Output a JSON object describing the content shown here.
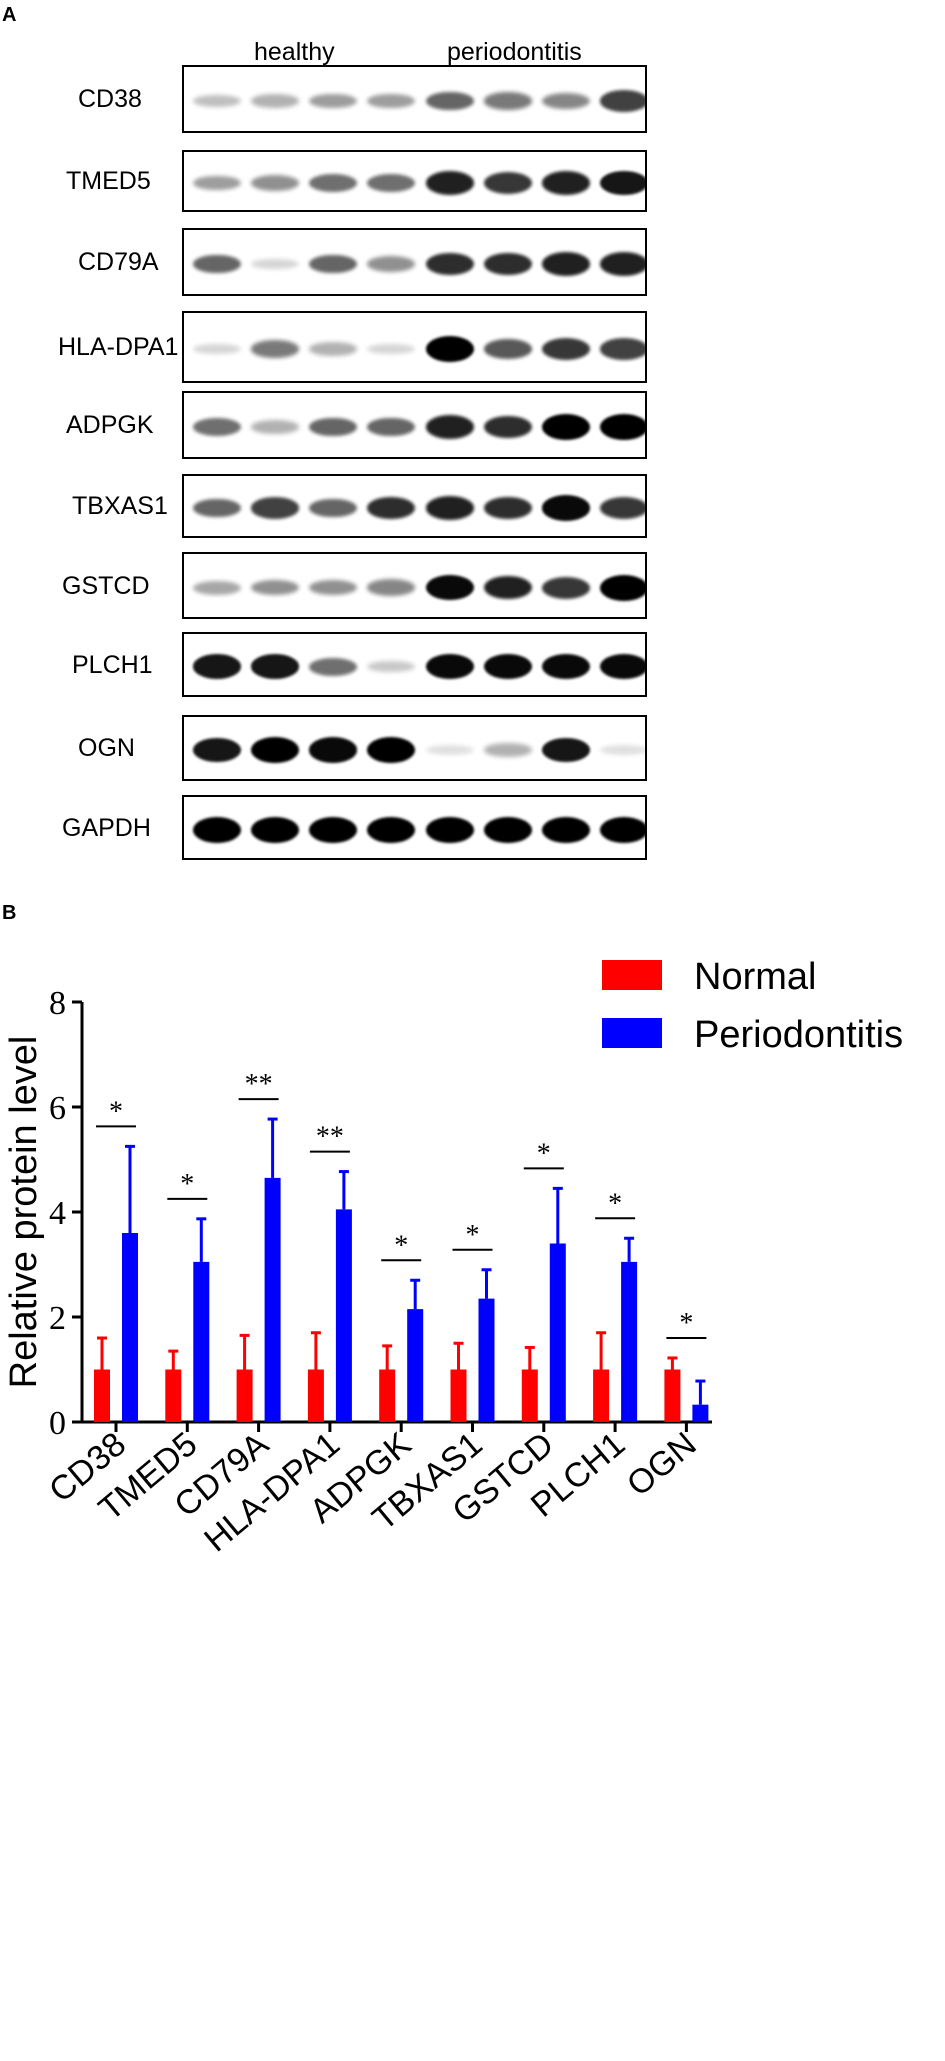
{
  "panel_a": {
    "letter": "A",
    "groups": [
      "healthy",
      "periodontitis"
    ],
    "blots": [
      {
        "label": "CD38",
        "bands": [
          0.15,
          0.2,
          0.3,
          0.3,
          0.55,
          0.45,
          0.4,
          0.7
        ]
      },
      {
        "label": "TMED5",
        "bands": [
          0.3,
          0.35,
          0.5,
          0.5,
          0.85,
          0.75,
          0.85,
          0.9
        ]
      },
      {
        "label": "CD79A",
        "bands": [
          0.55,
          0.05,
          0.55,
          0.35,
          0.8,
          0.8,
          0.85,
          0.85
        ]
      },
      {
        "label": "HLA-DPA1",
        "bands": [
          0.05,
          0.45,
          0.2,
          0.05,
          1.0,
          0.6,
          0.75,
          0.7
        ]
      },
      {
        "label": "ADPGK",
        "bands": [
          0.5,
          0.2,
          0.55,
          0.55,
          0.85,
          0.8,
          1.0,
          1.0
        ]
      },
      {
        "label": "TBXAS1",
        "bands": [
          0.55,
          0.7,
          0.55,
          0.8,
          0.85,
          0.8,
          0.95,
          0.75
        ]
      },
      {
        "label": "GSTCD",
        "bands": [
          0.25,
          0.35,
          0.35,
          0.4,
          0.95,
          0.85,
          0.75,
          1.0
        ]
      },
      {
        "label": "PLCH1",
        "bands": [
          0.9,
          0.9,
          0.5,
          0.1,
          0.95,
          0.95,
          0.95,
          0.95
        ]
      },
      {
        "label": "OGN",
        "bands": [
          0.9,
          1.0,
          0.95,
          1.0,
          0.0,
          0.2,
          0.9,
          0.0
        ]
      },
      {
        "label": "GAPDH",
        "bands": [
          1.0,
          1.0,
          1.0,
          1.0,
          1.0,
          1.0,
          1.0,
          1.0
        ]
      }
    ]
  },
  "panel_b": {
    "letter": "B"
  },
  "chart_data": {
    "type": "bar",
    "title": "",
    "xlabel": "",
    "ylabel": "Relative protein level",
    "ylim": [
      0,
      8
    ],
    "yticks": [
      "0",
      "2",
      "4",
      "6",
      "8"
    ],
    "categories": [
      "CD38",
      "TMED5",
      "CD79A",
      "HLA-DPA1",
      "ADPGK",
      "TBXAS1",
      "GSTCD",
      "PLCH1",
      "OGN"
    ],
    "series": [
      {
        "name": "Normal",
        "color": "#ff0000",
        "values": [
          1.0,
          1.0,
          1.0,
          1.0,
          1.0,
          1.0,
          1.0,
          1.0,
          1.0
        ],
        "errors": [
          0.6,
          0.35,
          0.65,
          0.7,
          0.45,
          0.5,
          0.42,
          0.7,
          0.22
        ]
      },
      {
        "name": "Periodontitis",
        "color": "#0000ff",
        "values": [
          3.6,
          3.05,
          4.65,
          4.05,
          2.15,
          2.35,
          3.4,
          3.05,
          0.33
        ],
        "errors": [
          1.65,
          0.82,
          1.12,
          0.72,
          0.55,
          0.55,
          1.05,
          0.45,
          0.45
        ]
      }
    ],
    "significance": [
      "*",
      "*",
      "**",
      "**",
      "*",
      "*",
      "*",
      "*",
      "*"
    ],
    "legend_position": "top-right",
    "grid": false
  }
}
